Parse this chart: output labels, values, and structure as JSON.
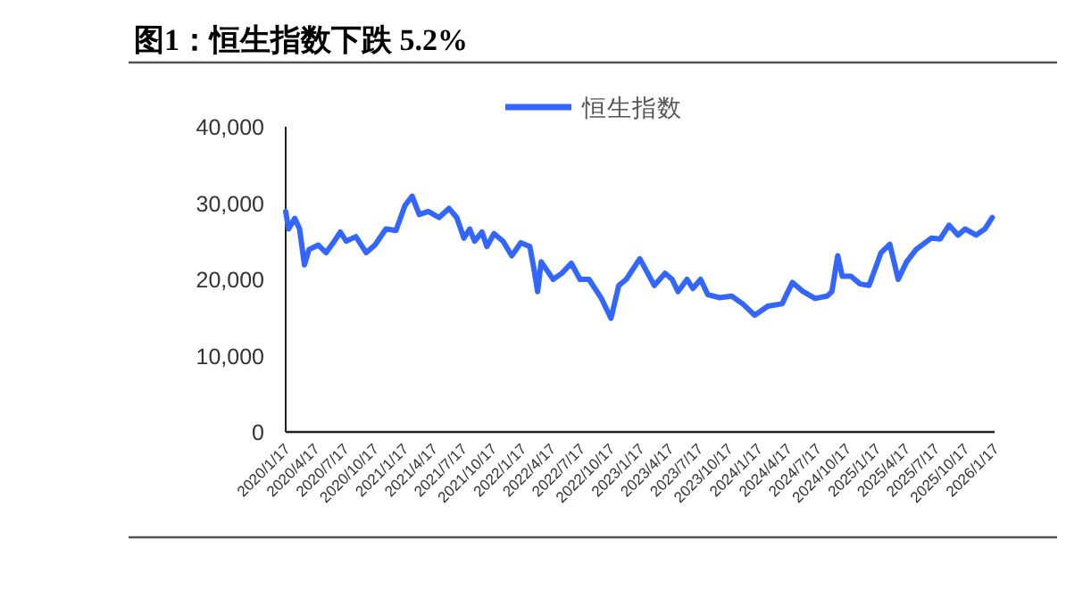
{
  "chart_data": {
    "type": "line",
    "title": "图1：恒生指数下跌 5.2%",
    "x": [
      "2020-01-17",
      "2020-01-26",
      "2020-02-14",
      "2020-02-29",
      "2020-03-15",
      "2020-03-29",
      "2020-04-27",
      "2020-05-21",
      "2020-06-12",
      "2020-07-04",
      "2020-07-22",
      "2020-08-21",
      "2020-09-22",
      "2020-10-19",
      "2020-11-22",
      "2020-12-23",
      "2021-01-20",
      "2021-02-11",
      "2021-03-05",
      "2021-04-02",
      "2021-05-05",
      "2021-06-05",
      "2021-06-29",
      "2021-07-21",
      "2021-08-08",
      "2021-08-23",
      "2021-09-15",
      "2021-09-30",
      "2021-10-22",
      "2021-11-19",
      "2021-12-16",
      "2022-01-13",
      "2022-02-10",
      "2022-02-25",
      "2022-03-06",
      "2022-03-17",
      "2022-04-23",
      "2022-05-20",
      "2022-06-18",
      "2022-07-15",
      "2022-08-12",
      "2022-09-18",
      "2022-10-19",
      "2022-11-03",
      "2022-11-12",
      "2022-12-05",
      "2023-01-16",
      "2023-03-02",
      "2023-04-04",
      "2023-04-26",
      "2023-05-14",
      "2023-06-11",
      "2023-06-29",
      "2023-07-23",
      "2023-08-14",
      "2023-09-20",
      "2023-10-27",
      "2023-11-30",
      "2024-01-06",
      "2024-02-16",
      "2024-03-31",
      "2024-05-02",
      "2024-06-04",
      "2024-07-11",
      "2024-08-17",
      "2024-09-01",
      "2024-09-19",
      "2024-10-03",
      "2024-10-30",
      "2024-11-27",
      "2024-12-25",
      "2025-01-31",
      "2025-02-27",
      "2025-03-25",
      "2025-04-20",
      "2025-05-19",
      "2025-07-05",
      "2025-08-02",
      "2025-08-29",
      "2025-09-26",
      "2025-10-18",
      "2025-11-21",
      "2025-12-18",
      "2026-01-10"
    ],
    "series": [
      {
        "name": "恒生指数",
        "color": "#3366ff",
        "values": [
          28900,
          26600,
          28000,
          26600,
          21900,
          23900,
          24500,
          23500,
          24800,
          26200,
          25000,
          25600,
          23500,
          24500,
          26600,
          26400,
          29700,
          30900,
          28500,
          28900,
          28100,
          29300,
          28100,
          25400,
          26600,
          25000,
          26200,
          24300,
          26000,
          25000,
          23100,
          24800,
          24300,
          20800,
          18400,
          22300,
          20000,
          20800,
          22100,
          20000,
          20000,
          17600,
          14900,
          17600,
          19200,
          20000,
          22700,
          19200,
          20800,
          20000,
          18400,
          20000,
          18800,
          20000,
          18000,
          17600,
          17800,
          16800,
          15300,
          16500,
          16800,
          19600,
          18400,
          17500,
          17800,
          18400,
          23100,
          20400,
          20400,
          19400,
          19200,
          23500,
          24600,
          20000,
          22300,
          23900,
          25400,
          25300,
          27100,
          25800,
          26600,
          25800,
          26600,
          28100
        ]
      }
    ],
    "xlim": [
      "2020-01-17",
      "2026-01-17"
    ],
    "xticks": [
      {
        "value": "2020-01-17",
        "label": "2020/1/17"
      },
      {
        "value": "2020-04-17",
        "label": "2020/4/17"
      },
      {
        "value": "2020-07-17",
        "label": "2020/7/17"
      },
      {
        "value": "2020-10-17",
        "label": "2020/10/17"
      },
      {
        "value": "2021-01-17",
        "label": "2021/1/17"
      },
      {
        "value": "2021-04-17",
        "label": "2021/4/17"
      },
      {
        "value": "2021-07-17",
        "label": "2021/7/17"
      },
      {
        "value": "2021-10-17",
        "label": "2021/10/17"
      },
      {
        "value": "2022-01-17",
        "label": "2022/1/17"
      },
      {
        "value": "2022-04-17",
        "label": "2022/4/17"
      },
      {
        "value": "2022-07-17",
        "label": "2022/7/17"
      },
      {
        "value": "2022-10-17",
        "label": "2022/10/17"
      },
      {
        "value": "2023-01-17",
        "label": "2023/1/17"
      },
      {
        "value": "2023-04-17",
        "label": "2023/4/17"
      },
      {
        "value": "2023-07-17",
        "label": "2023/7/17"
      },
      {
        "value": "2023-10-17",
        "label": "2023/10/17"
      },
      {
        "value": "2024-01-17",
        "label": "2024/1/17"
      },
      {
        "value": "2024-04-17",
        "label": "2024/4/17"
      },
      {
        "value": "2024-07-17",
        "label": "2024/7/17"
      },
      {
        "value": "2024-10-17",
        "label": "2024/10/17"
      },
      {
        "value": "2025-01-17",
        "label": "2025/1/17"
      },
      {
        "value": "2025-04-17",
        "label": "2025/4/17"
      },
      {
        "value": "2025-07-17",
        "label": "2025/7/17"
      },
      {
        "value": "2025-10-17",
        "label": "2025/10/17"
      },
      {
        "value": "2026-01-17",
        "label": "2026/1/17"
      }
    ],
    "ylim": [
      0,
      40000
    ],
    "yticks": [
      0,
      {
        "value": 10000,
        "label": "10,000"
      },
      {
        "value": 20000,
        "label": "20,000"
      },
      {
        "value": 30000,
        "label": "30,000"
      },
      {
        "value": 40000,
        "label": "40,000"
      }
    ],
    "legend": "top"
  }
}
